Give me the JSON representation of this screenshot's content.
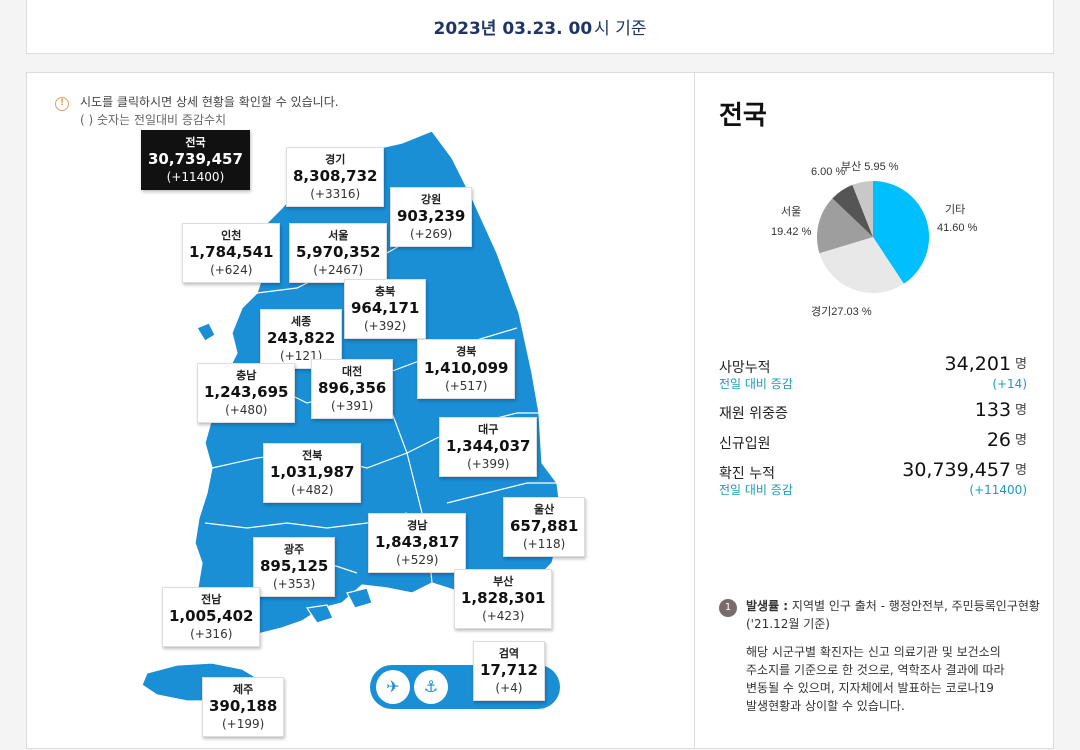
{
  "header": {
    "date": "2023년 03.23. 00",
    "suffix": "시 기준"
  },
  "notice": {
    "line1": "시도를 클릭하시면 상세 현황을 확인할 수 있습니다.",
    "line2": "( ) 숫자는 전일대비 증감수치"
  },
  "regions": {
    "national": {
      "name": "전국",
      "count": "30,739,457",
      "delta": "(+11400)"
    },
    "gyeonggi": {
      "name": "경기",
      "count": "8,308,732",
      "delta": "(+3316)"
    },
    "gangwon": {
      "name": "강원",
      "count": "903,239",
      "delta": "(+269)"
    },
    "incheon": {
      "name": "인천",
      "count": "1,784,541",
      "delta": "(+624)"
    },
    "seoul": {
      "name": "서울",
      "count": "5,970,352",
      "delta": "(+2467)"
    },
    "chungbuk": {
      "name": "충북",
      "count": "964,171",
      "delta": "(+392)"
    },
    "sejong": {
      "name": "세종",
      "count": "243,822",
      "delta": "(+121)"
    },
    "gyeongbuk": {
      "name": "경북",
      "count": "1,410,099",
      "delta": "(+517)"
    },
    "chungnam": {
      "name": "충남",
      "count": "1,243,695",
      "delta": "(+480)"
    },
    "daejeon": {
      "name": "대전",
      "count": "896,356",
      "delta": "(+391)"
    },
    "daegu": {
      "name": "대구",
      "count": "1,344,037",
      "delta": "(+399)"
    },
    "jeonbuk": {
      "name": "전북",
      "count": "1,031,987",
      "delta": "(+482)"
    },
    "ulsan": {
      "name": "울산",
      "count": "657,881",
      "delta": "(+118)"
    },
    "gyeongnam": {
      "name": "경남",
      "count": "1,843,817",
      "delta": "(+529)"
    },
    "gwangju": {
      "name": "광주",
      "count": "895,125",
      "delta": "(+353)"
    },
    "busan": {
      "name": "부산",
      "count": "1,828,301",
      "delta": "(+423)"
    },
    "jeonnam": {
      "name": "전남",
      "count": "1,005,402",
      "delta": "(+316)"
    },
    "quarantine": {
      "name": "검역",
      "count": "17,712",
      "delta": "(+4)"
    },
    "jeju": {
      "name": "제주",
      "count": "390,188",
      "delta": "(+199)"
    }
  },
  "detail": {
    "title": "전국",
    "pie_labels": {
      "etc": "기타",
      "etc_pct": "41.60 %",
      "gyeonggi": "경기27.03 %",
      "seoul": "서울",
      "seoul_pct": "19.42 %",
      "busan": "6.00 %",
      "other": "부산 5.95 %"
    },
    "stats": {
      "deaths_label": "사망누적",
      "deaths_value": "34,201",
      "deaths_delta_label": "전일 대비 증감",
      "deaths_delta": "(+14)",
      "severe_label": "재원 위중증",
      "severe_value": "133",
      "admit_label": "신규입원",
      "admit_value": "26",
      "confirmed_label": "확진 누적",
      "confirmed_value": "30,739,457",
      "confirmed_delta_label": "전일 대비 증감",
      "confirmed_delta": "(+11400)",
      "unit": "명"
    },
    "footnote": {
      "num": "1",
      "head_bold": "발생률 :",
      "head_rest": " 지역별 인구 출처 - 행정안전부, 주민등록인구현황",
      "src2": "('21.12월 기준)",
      "body1": "해당 시군구별 확진자는 신고 의료기관 및 보건소의",
      "body2": "주소지를 기준으로 한 것으로, 역학조사 결과에 따라",
      "body3": "변동될 수 있으며, 지자체에서 발표하는 코로나19",
      "body4": "발생현황과 상이할 수 있습니다."
    }
  },
  "colors": {
    "map_fill": "#1a8fd6",
    "pie": [
      "#00bfff",
      "#e8e8e8",
      "#9e9e9e",
      "#555555",
      "#c8c8c8"
    ]
  }
}
